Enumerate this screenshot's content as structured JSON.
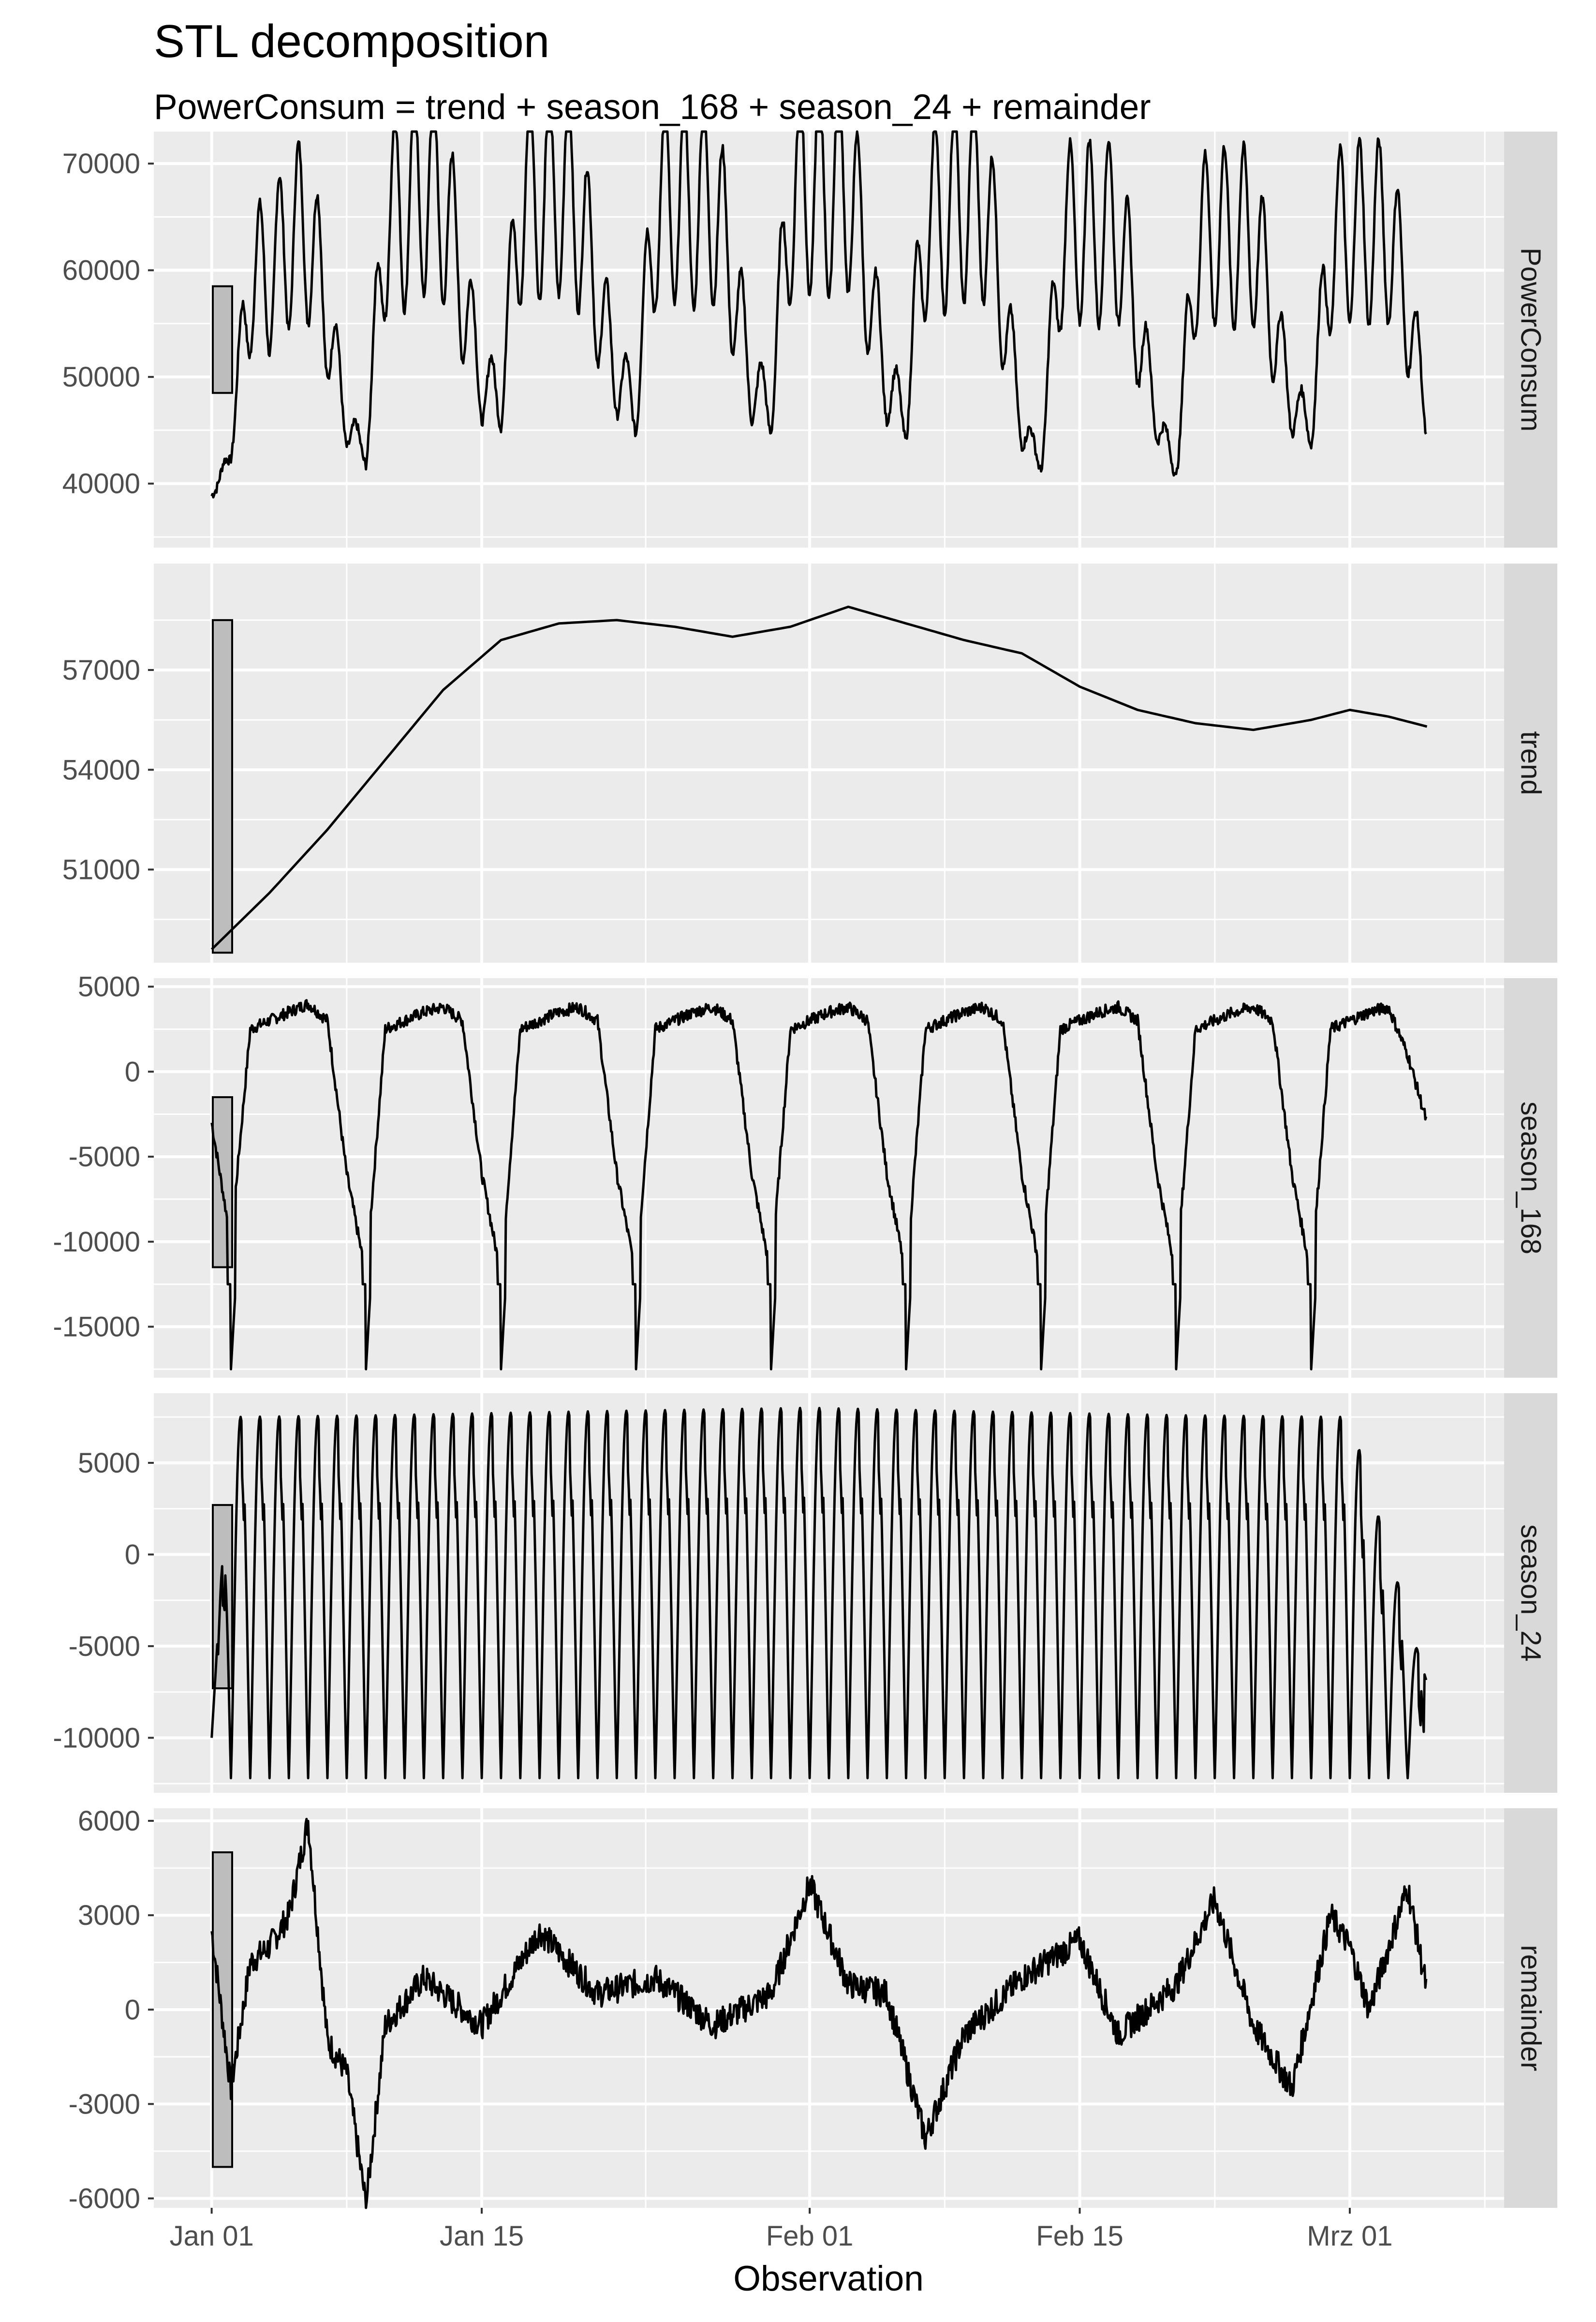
{
  "colors": {
    "panel_background": "#ebebeb",
    "gridline": "#ffffff",
    "strip_background": "#d9d9d9",
    "line": "#000000",
    "scale_bar_fill": "#bdbdbd",
    "tick_text": "#4d4d4d"
  },
  "chart_data": {
    "type": "line",
    "title": "STL decomposition",
    "subtitle": "PowerConsum = trend + season_168 + season_24 + remainder",
    "xlabel": "Observation",
    "x_axis": {
      "range": [
        "2021-12-29",
        "2022-03-09"
      ],
      "ticks": [
        "2022-01-01",
        "2022-01-15",
        "2022-02-01",
        "2022-02-15",
        "2022-03-01"
      ],
      "tick_labels": [
        "Jan 01",
        "Jan 15",
        "Feb 01",
        "Feb 15",
        "Mrz 01"
      ],
      "data_start": "2022-01-01",
      "data_end": "2022-03-05"
    },
    "grid": true,
    "scale_bars": true,
    "panels": [
      {
        "name": "PowerConsum",
        "ylim": [
          34000,
          73000
        ],
        "yticks": [
          40000,
          50000,
          60000,
          70000
        ],
        "ytick_labels": [
          "40000",
          "50000",
          "60000",
          "70000"
        ],
        "scale_bar": [
          48500,
          58500
        ],
        "points": [
          [
            "2022-01-01",
            38000
          ],
          [
            "2022-01-02",
            44000
          ],
          [
            "2022-01-03",
            61000
          ],
          [
            "2022-01-04",
            61000
          ],
          [
            "2022-01-05",
            65000
          ],
          [
            "2022-01-06",
            66000
          ],
          [
            "2022-01-07",
            57000
          ],
          [
            "2022-01-08",
            46000
          ],
          [
            "2022-01-09",
            43000
          ],
          [
            "2022-01-10",
            67000
          ],
          [
            "2022-01-11",
            68000
          ],
          [
            "2022-01-12",
            70500
          ],
          [
            "2022-01-13",
            69000
          ],
          [
            "2022-01-14",
            60000
          ],
          [
            "2022-01-15",
            50000
          ],
          [
            "2022-01-16",
            49000
          ],
          [
            "2022-01-17",
            69000
          ],
          [
            "2022-01-18",
            69500
          ],
          [
            "2022-01-19",
            70500
          ],
          [
            "2022-01-20",
            68000
          ],
          [
            "2022-01-21",
            59000
          ],
          [
            "2022-01-22",
            51000
          ],
          [
            "2022-01-23",
            48000
          ],
          [
            "2022-01-24",
            68000
          ],
          [
            "2022-01-25",
            69000
          ],
          [
            "2022-01-26",
            68000
          ],
          [
            "2022-01-27",
            69000
          ],
          [
            "2022-01-28",
            61000
          ],
          [
            "2022-01-29",
            50000
          ],
          [
            "2022-01-30",
            48000
          ],
          [
            "2022-01-31",
            69500
          ],
          [
            "2022-02-01",
            70500
          ],
          [
            "2022-02-02",
            70000
          ],
          [
            "2022-02-03",
            71000
          ],
          [
            "2022-02-04",
            61000
          ],
          [
            "2022-02-05",
            50000
          ],
          [
            "2022-02-06",
            47000
          ],
          [
            "2022-02-07",
            67000
          ],
          [
            "2022-02-08",
            67500
          ],
          [
            "2022-02-09",
            69000
          ],
          [
            "2022-02-10",
            69500
          ],
          [
            "2022-02-11",
            59000
          ],
          [
            "2022-02-12",
            46000
          ],
          [
            "2022-02-13",
            42000
          ],
          [
            "2022-02-14",
            65000
          ],
          [
            "2022-02-15",
            66000
          ],
          [
            "2022-02-16",
            65500
          ],
          [
            "2022-02-17",
            66000
          ],
          [
            "2022-02-18",
            56000
          ],
          [
            "2022-02-19",
            47000
          ],
          [
            "2022-02-20",
            41000
          ],
          [
            "2022-02-21",
            64000
          ],
          [
            "2022-02-22",
            65500
          ],
          [
            "2022-02-23",
            65000
          ],
          [
            "2022-02-24",
            65500
          ],
          [
            "2022-02-25",
            57000
          ],
          [
            "2022-02-26",
            48000
          ],
          [
            "2022-02-27",
            46000
          ],
          [
            "2022-02-28",
            64500
          ],
          [
            "2022-03-01",
            66000
          ],
          [
            "2022-03-02",
            65500
          ],
          [
            "2022-03-03",
            66000
          ],
          [
            "2022-03-04",
            58000
          ],
          [
            "2022-03-05",
            47000
          ]
        ]
      },
      {
        "name": "trend",
        "ylim": [
          48200,
          60200
        ],
        "yticks": [
          51000,
          54000,
          57000
        ],
        "ytick_labels": [
          "51000",
          "54000",
          "57000"
        ],
        "scale_bar": [
          48500,
          58500
        ],
        "points": [
          [
            "2022-01-01",
            48600
          ],
          [
            "2022-01-04",
            50300
          ],
          [
            "2022-01-07",
            52200
          ],
          [
            "2022-01-10",
            54300
          ],
          [
            "2022-01-13",
            56400
          ],
          [
            "2022-01-16",
            57900
          ],
          [
            "2022-01-19",
            58400
          ],
          [
            "2022-01-22",
            58500
          ],
          [
            "2022-01-25",
            58300
          ],
          [
            "2022-01-28",
            58000
          ],
          [
            "2022-01-31",
            58300
          ],
          [
            "2022-02-03",
            58900
          ],
          [
            "2022-02-06",
            58400
          ],
          [
            "2022-02-09",
            57900
          ],
          [
            "2022-02-12",
            57500
          ],
          [
            "2022-02-15",
            56500
          ],
          [
            "2022-02-18",
            55800
          ],
          [
            "2022-02-21",
            55400
          ],
          [
            "2022-02-24",
            55200
          ],
          [
            "2022-02-27",
            55500
          ],
          [
            "2022-03-01",
            55800
          ],
          [
            "2022-03-03",
            55600
          ],
          [
            "2022-03-05",
            55300
          ]
        ]
      },
      {
        "name": "season_168",
        "ylim": [
          -18000,
          5500
        ],
        "yticks": [
          -15000,
          -10000,
          -5000,
          0,
          5000
        ],
        "ytick_labels": [
          "-15000",
          "-10000",
          "-5000",
          "0",
          "5000"
        ],
        "scale_bar": [
          -11500,
          -1500
        ],
        "points": [
          [
            "2022-01-01",
            -3000
          ],
          [
            "2022-01-02",
            -10000
          ],
          [
            "2022-01-03",
            2500
          ],
          [
            "2022-01-04",
            3000
          ],
          [
            "2022-01-05",
            3500
          ],
          [
            "2022-01-06",
            4000
          ],
          [
            "2022-01-07",
            3000
          ],
          [
            "2022-01-08",
            -6000
          ],
          [
            "2022-01-09",
            -12000
          ],
          [
            "2022-01-10",
            2500
          ],
          [
            "2022-01-11",
            3000
          ],
          [
            "2022-01-12",
            3500
          ],
          [
            "2022-01-13",
            3800
          ],
          [
            "2022-01-14",
            3000
          ],
          [
            "2022-01-15",
            -6000
          ],
          [
            "2022-01-16",
            -12000
          ],
          [
            "2022-01-17",
            2500
          ],
          [
            "2022-01-18",
            3000
          ],
          [
            "2022-01-19",
            3500
          ],
          [
            "2022-01-20",
            3800
          ],
          [
            "2022-01-21",
            3000
          ],
          [
            "2022-01-22",
            -6000
          ],
          [
            "2022-01-23",
            -12000
          ],
          [
            "2022-01-24",
            2500
          ],
          [
            "2022-01-25",
            3000
          ],
          [
            "2022-01-26",
            3500
          ],
          [
            "2022-01-27",
            3800
          ],
          [
            "2022-01-28",
            3000
          ],
          [
            "2022-01-29",
            -6000
          ],
          [
            "2022-01-30",
            -12000
          ],
          [
            "2022-01-31",
            2500
          ],
          [
            "2022-02-01",
            3000
          ],
          [
            "2022-02-02",
            3500
          ],
          [
            "2022-02-03",
            3800
          ],
          [
            "2022-02-04",
            3000
          ],
          [
            "2022-02-05",
            -6000
          ],
          [
            "2022-02-06",
            -12000
          ],
          [
            "2022-02-07",
            2500
          ],
          [
            "2022-02-08",
            3000
          ],
          [
            "2022-02-09",
            3500
          ],
          [
            "2022-02-10",
            3800
          ],
          [
            "2022-02-11",
            3000
          ],
          [
            "2022-02-12",
            -6000
          ],
          [
            "2022-02-13",
            -12000
          ],
          [
            "2022-02-14",
            2500
          ],
          [
            "2022-02-15",
            3000
          ],
          [
            "2022-02-16",
            3500
          ],
          [
            "2022-02-17",
            3800
          ],
          [
            "2022-02-18",
            3000
          ],
          [
            "2022-02-19",
            -6000
          ],
          [
            "2022-02-20",
            -12000
          ],
          [
            "2022-02-21",
            2500
          ],
          [
            "2022-02-22",
            3000
          ],
          [
            "2022-02-23",
            3500
          ],
          [
            "2022-02-24",
            3800
          ],
          [
            "2022-02-25",
            3000
          ],
          [
            "2022-02-26",
            -6000
          ],
          [
            "2022-02-27",
            -12000
          ],
          [
            "2022-02-28",
            2500
          ],
          [
            "2022-03-01",
            3000
          ],
          [
            "2022-03-02",
            3500
          ],
          [
            "2022-03-03",
            3800
          ],
          [
            "2022-03-04",
            1000
          ],
          [
            "2022-03-05",
            -3000
          ]
        ]
      },
      {
        "name": "season_24",
        "ylim": [
          -13000,
          8800
        ],
        "yticks": [
          -10000,
          -5000,
          0,
          5000
        ],
        "ytick_labels": [
          "-10000",
          "-5000",
          "0",
          "5000"
        ],
        "scale_bar": [
          -7300,
          2700
        ],
        "points": [
          [
            "2022-01-01",
            -10000
          ],
          [
            "2022-01-02",
            7500
          ],
          [
            "2022-01-10",
            7600
          ],
          [
            "2022-01-20",
            7800
          ],
          [
            "2022-02-01",
            8000
          ],
          [
            "2022-02-10",
            7800
          ],
          [
            "2022-02-20",
            7600
          ],
          [
            "2022-03-01",
            7500
          ],
          [
            "2022-03-05",
            -7000
          ]
        ]
      },
      {
        "name": "remainder",
        "ylim": [
          -6300,
          6400
        ],
        "yticks": [
          -6000,
          -3000,
          0,
          3000,
          6000
        ],
        "ytick_labels": [
          "-6000",
          "-3000",
          "0",
          "3000",
          "6000"
        ],
        "scale_bar": [
          -5000,
          5000
        ],
        "points": [
          [
            "2022-01-01",
            2500
          ],
          [
            "2022-01-02",
            -2500
          ],
          [
            "2022-01-03",
            1500
          ],
          [
            "2022-01-04",
            2000
          ],
          [
            "2022-01-05",
            3000
          ],
          [
            "2022-01-06",
            6000
          ],
          [
            "2022-01-07",
            -1000
          ],
          [
            "2022-01-08",
            -2000
          ],
          [
            "2022-01-09",
            -6200
          ],
          [
            "2022-01-10",
            -500
          ],
          [
            "2022-01-12",
            1000
          ],
          [
            "2022-01-15",
            -500
          ],
          [
            "2022-01-18",
            2500
          ],
          [
            "2022-01-21",
            500
          ],
          [
            "2022-01-24",
            1000
          ],
          [
            "2022-01-27",
            -500
          ],
          [
            "2022-01-30",
            500
          ],
          [
            "2022-02-01",
            4000
          ],
          [
            "2022-02-03",
            800
          ],
          [
            "2022-02-05",
            500
          ],
          [
            "2022-02-07",
            -4100
          ],
          [
            "2022-02-09",
            -800
          ],
          [
            "2022-02-12",
            1000
          ],
          [
            "2022-02-15",
            2200
          ],
          [
            "2022-02-17",
            -800
          ],
          [
            "2022-02-20",
            800
          ],
          [
            "2022-02-22",
            3500
          ],
          [
            "2022-02-24",
            -500
          ],
          [
            "2022-02-26",
            -2500
          ],
          [
            "2022-02-28",
            3000
          ],
          [
            "2022-03-01",
            2000
          ],
          [
            "2022-03-02",
            0
          ],
          [
            "2022-03-04",
            3900
          ],
          [
            "2022-03-05",
            600
          ]
        ]
      }
    ]
  }
}
